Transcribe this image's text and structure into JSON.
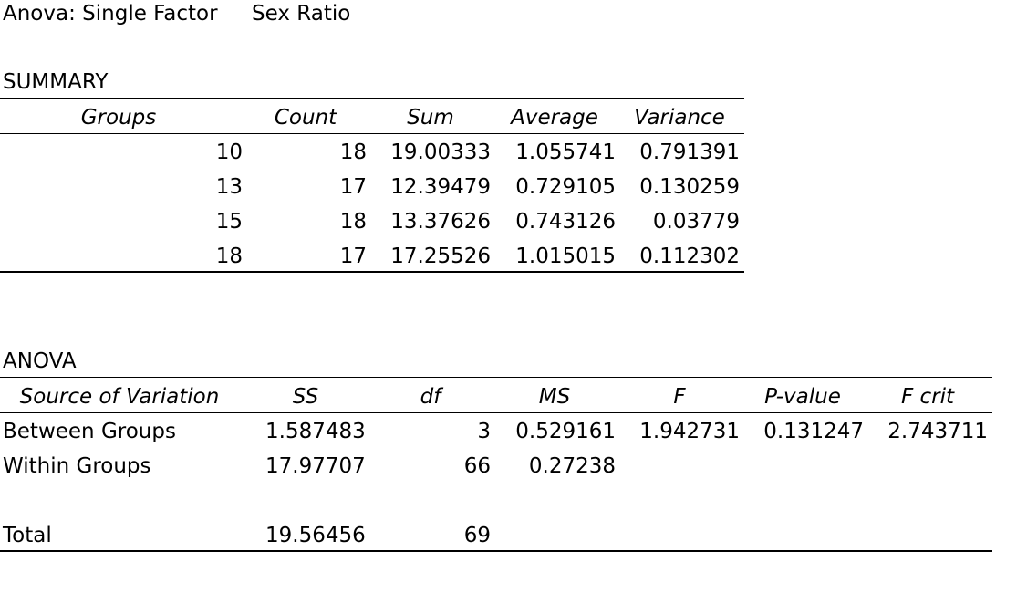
{
  "header": {
    "title": "Anova: Single Factor",
    "subtitle": "Sex Ratio"
  },
  "summary": {
    "label": "SUMMARY",
    "headers": [
      "Groups",
      "Count",
      "Sum",
      "Average",
      "Variance"
    ],
    "rows": [
      [
        "10",
        "18",
        "19.00333",
        "1.055741",
        "0.791391"
      ],
      [
        "13",
        "17",
        "12.39479",
        "0.729105",
        "0.130259"
      ],
      [
        "15",
        "18",
        "13.37626",
        "0.743126",
        "0.03779"
      ],
      [
        "18",
        "17",
        "17.25526",
        "1.015015",
        "0.112302"
      ]
    ]
  },
  "anova": {
    "label": "ANOVA",
    "headers": [
      "Source of Variation",
      "SS",
      "df",
      "MS",
      "F",
      "P-value",
      "F crit"
    ],
    "rows": [
      [
        "Between Groups",
        "1.587483",
        "3",
        "0.529161",
        "1.942731",
        "0.131247",
        "2.743711"
      ],
      [
        "Within Groups",
        "17.97707",
        "66",
        "0.27238",
        "",
        "",
        ""
      ],
      [
        "Total",
        "19.56456",
        "69",
        "",
        "",
        "",
        ""
      ]
    ]
  }
}
